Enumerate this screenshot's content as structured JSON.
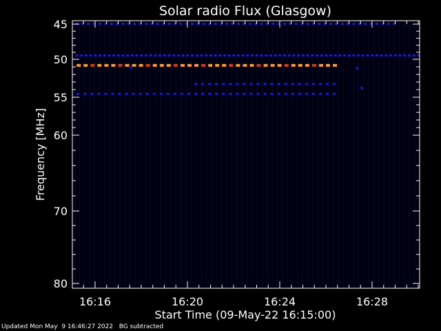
{
  "chart_data": {
    "type": "heatmap",
    "title": "Solar radio Flux (Glasgow)",
    "xlabel": "Start Time (09-May-22 16:15:00)",
    "ylabel": "Frequency [MHz]",
    "x_unit": "minutes after 16:00",
    "xlim": [
      15.0,
      30.2
    ],
    "ylim": [
      45,
      80
    ],
    "x_ticks": [
      {
        "value": 16,
        "label": "16:16"
      },
      {
        "value": 20,
        "label": "16:20"
      },
      {
        "value": 24,
        "label": "16:24"
      },
      {
        "value": 28,
        "label": "16:28"
      }
    ],
    "y_ticks": [
      {
        "value": 45,
        "label": "45"
      },
      {
        "value": 50,
        "label": "50"
      },
      {
        "value": 55,
        "label": "55"
      },
      {
        "value": 60,
        "label": "60"
      },
      {
        "value": 70,
        "label": "70"
      },
      {
        "value": 80,
        "label": "80"
      }
    ],
    "background": "#000010",
    "colors": {
      "axis": "#ffffff",
      "weak": "#1a1ae6",
      "mid": "#d93a1a",
      "strong": "#ff9a30"
    },
    "emission_bands": [
      {
        "freq": 45.0,
        "t_start": 15.15,
        "t_end": 29.0,
        "level": "weak",
        "spacing": 0.25
      },
      {
        "freq": 49.5,
        "t_start": 15.15,
        "t_end": 30.1,
        "level": "weak",
        "spacing": 0.2
      },
      {
        "freq": 50.8,
        "t_start": 15.2,
        "t_end": 26.5,
        "level": "strong",
        "spacing": 0.3
      },
      {
        "freq": 53.3,
        "t_start": 20.3,
        "t_end": 26.5,
        "level": "weak",
        "spacing": 0.3
      },
      {
        "freq": 54.6,
        "t_start": 15.2,
        "t_end": 26.5,
        "level": "weak",
        "spacing": 0.3
      }
    ],
    "bursts": [
      {
        "t": 17.55,
        "freq": 51.1,
        "level": "weak"
      },
      {
        "t": 27.35,
        "freq": 51.2,
        "level": "weak"
      },
      {
        "t": 27.55,
        "freq": 53.8,
        "level": "weak"
      }
    ]
  },
  "footer": {
    "updated": "Updated Mon May  9 16:46:27 2022",
    "note": "BG subtracted"
  }
}
